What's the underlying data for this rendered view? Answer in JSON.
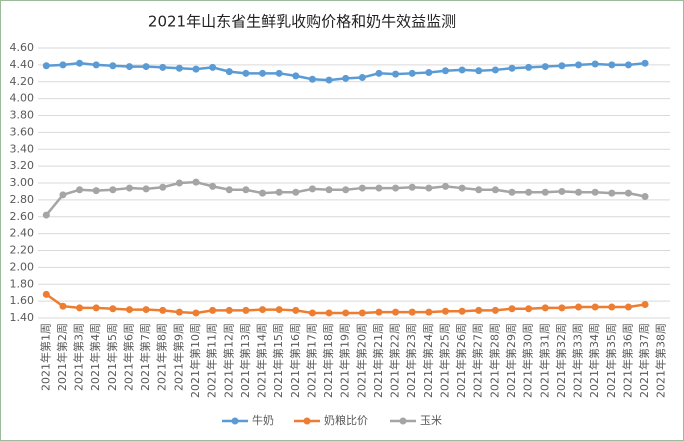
{
  "chart_data": {
    "type": "line",
    "title": "2021年山东省生鲜乳收购价格和奶牛效益监测",
    "categories": [
      "2021年第1周",
      "2021年第2周",
      "2021年第3周",
      "2021年第4周",
      "2021年第5周",
      "2021年第6周",
      "2021年第7周",
      "2021年第8周",
      "2021年第9周",
      "2021年第10周",
      "2021年第11周",
      "2021年第12周",
      "2021年第13周",
      "2021年第14周",
      "2021年第15周",
      "2021年第16周",
      "2021年第17周",
      "2021年第18周",
      "2021年第19周",
      "2021年第20周",
      "2021年第21周",
      "2021年第22周",
      "2021年第23周",
      "2021年第24周",
      "2021年第25周",
      "2021年第26周",
      "2021年第27周",
      "2021年第28周",
      "2021年第29周",
      "2021年第30周",
      "2021年第31周",
      "2021年第32周",
      "2021年第33周",
      "2021年第34周",
      "2021年第35周",
      "2021年第36周",
      "2021年第37周",
      "2021年第38周"
    ],
    "series": [
      {
        "name": "牛奶",
        "color": "#5b9bd5",
        "values": [
          4.39,
          4.4,
          4.42,
          4.4,
          4.39,
          4.38,
          4.38,
          4.37,
          4.36,
          4.35,
          4.37,
          4.32,
          4.3,
          4.3,
          4.3,
          4.27,
          4.23,
          4.22,
          4.24,
          4.25,
          4.3,
          4.29,
          4.3,
          4.31,
          4.33,
          4.34,
          4.33,
          4.34,
          4.36,
          4.37,
          4.38,
          4.39,
          4.4,
          4.41,
          4.4,
          4.4,
          4.42,
          null
        ]
      },
      {
        "name": "奶粮比价",
        "color": "#ed7d31",
        "values": [
          1.68,
          1.54,
          1.52,
          1.52,
          1.51,
          1.5,
          1.5,
          1.49,
          1.47,
          1.46,
          1.49,
          1.49,
          1.49,
          1.5,
          1.5,
          1.49,
          1.46,
          1.46,
          1.46,
          1.46,
          1.47,
          1.47,
          1.47,
          1.47,
          1.48,
          1.48,
          1.49,
          1.49,
          1.51,
          1.51,
          1.52,
          1.52,
          1.53,
          1.53,
          1.53,
          1.53,
          1.56,
          null
        ]
      },
      {
        "name": "玉米",
        "color": "#a5a5a5",
        "values": [
          2.62,
          2.86,
          2.92,
          2.91,
          2.92,
          2.94,
          2.93,
          2.95,
          3.0,
          3.01,
          2.96,
          2.92,
          2.92,
          2.88,
          2.89,
          2.89,
          2.93,
          2.92,
          2.92,
          2.94,
          2.94,
          2.94,
          2.95,
          2.94,
          2.96,
          2.94,
          2.92,
          2.92,
          2.89,
          2.89,
          2.89,
          2.9,
          2.89,
          2.89,
          2.88,
          2.88,
          2.84,
          null
        ]
      }
    ],
    "ylim": [
      1.4,
      4.6
    ],
    "yticks": [
      {
        "value": 1.4,
        "label": "1.40"
      },
      {
        "value": 1.6,
        "label": "1.60"
      },
      {
        "value": 1.8,
        "label": "1.80"
      },
      {
        "value": 2.0,
        "label": "2.00"
      },
      {
        "value": 2.2,
        "label": "2.20"
      },
      {
        "value": 2.4,
        "label": "2.40"
      },
      {
        "value": 2.6,
        "label": "2.60"
      },
      {
        "value": 2.8,
        "label": "2.80"
      },
      {
        "value": 3.0,
        "label": "3.00"
      },
      {
        "value": 3.2,
        "label": "3.20"
      },
      {
        "value": 3.4,
        "label": "3.40"
      },
      {
        "value": 3.6,
        "label": "3.60"
      },
      {
        "value": 3.8,
        "label": "3.80"
      },
      {
        "value": 4.0,
        "label": "4.00"
      },
      {
        "value": 4.2,
        "label": "4.20"
      },
      {
        "value": 4.4,
        "label": "4.40"
      },
      {
        "value": 4.6,
        "label": "4.60"
      }
    ],
    "grid": true,
    "legend": "bottom"
  }
}
